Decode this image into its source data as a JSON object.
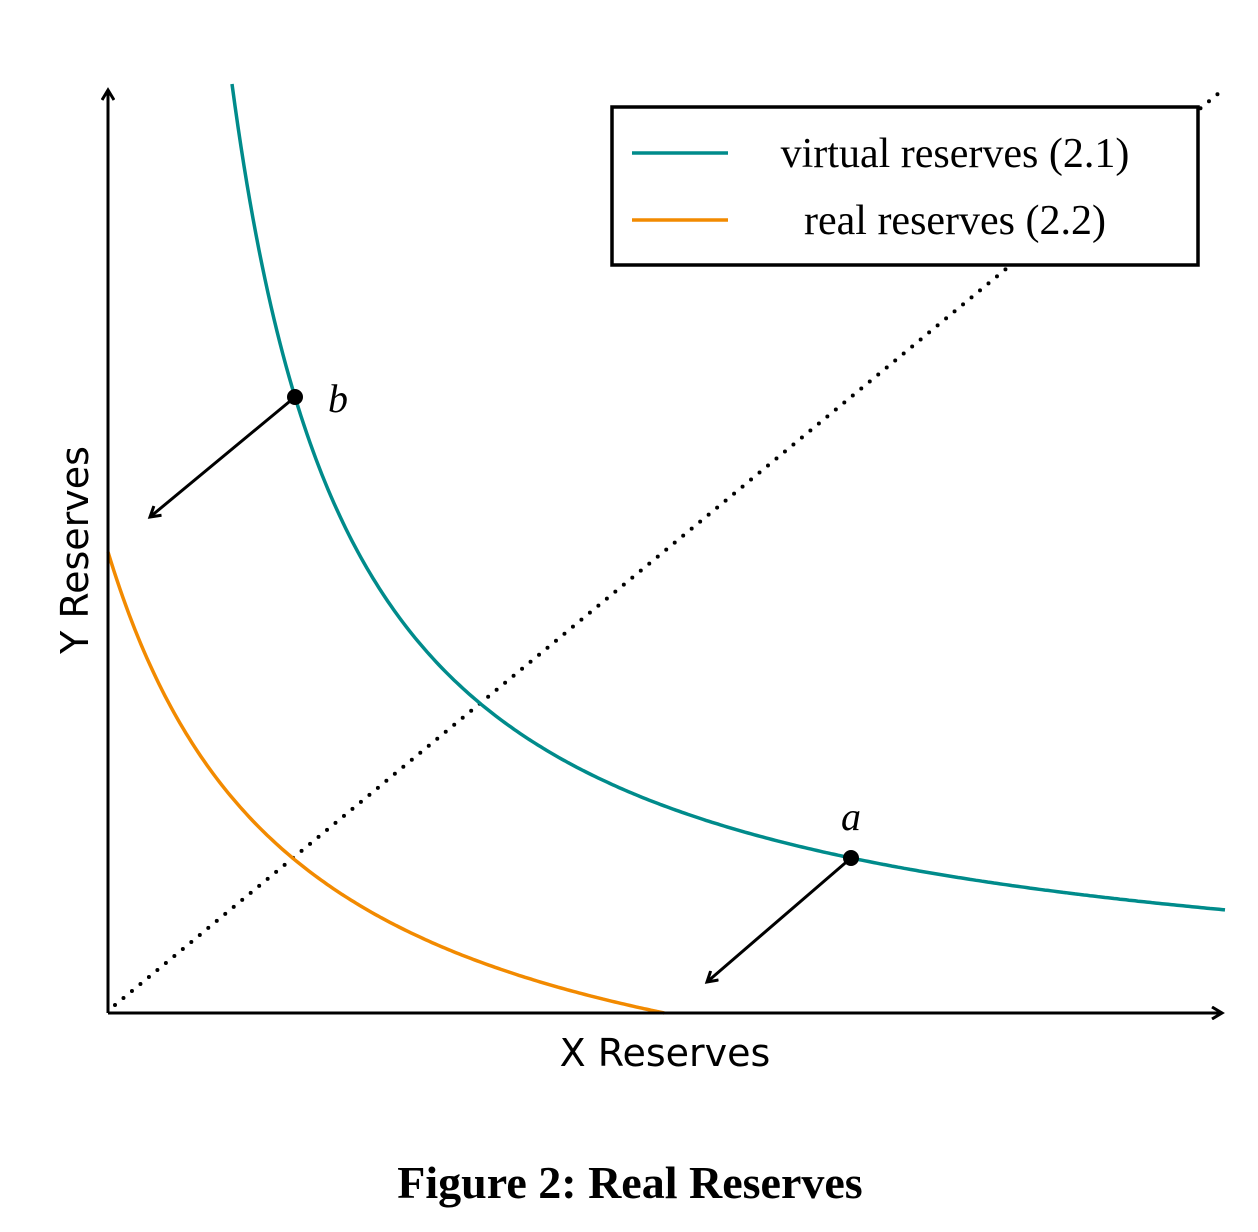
{
  "legend": [
    {
      "label": "virtual reserves (2.1)"
    },
    {
      "label": "real reserves (2.2)"
    }
  ],
  "y_axis_label": "Y Reserves",
  "x_axis_label": "X Reserves",
  "points": [
    {
      "label": "a"
    },
    {
      "label": "b"
    }
  ],
  "caption": "Figure 2: Real Reserves"
}
